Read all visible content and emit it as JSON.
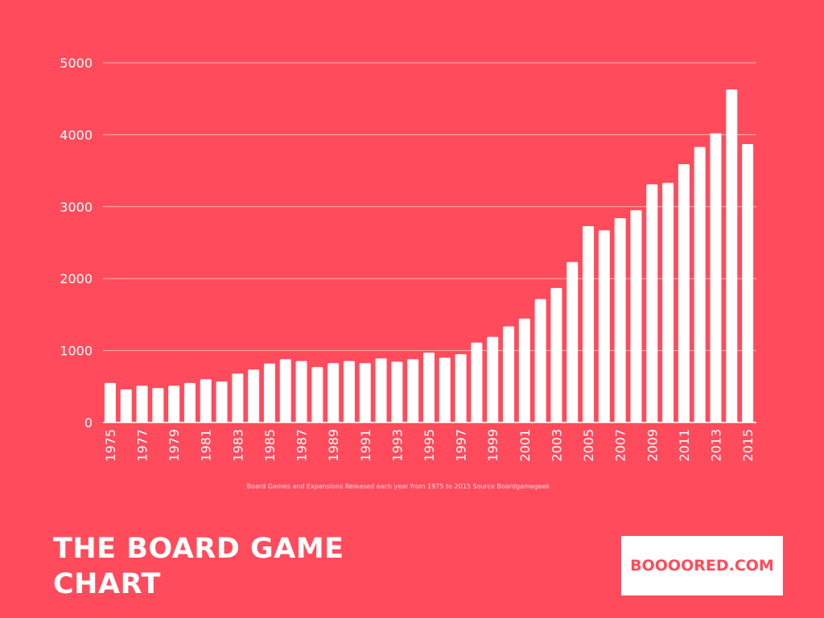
{
  "chart_data": {
    "type": "bar",
    "categories": [
      "1975",
      "1976",
      "1977",
      "1978",
      "1979",
      "1980",
      "1981",
      "1982",
      "1983",
      "1984",
      "1985",
      "1986",
      "1987",
      "1988",
      "1989",
      "1990",
      "1991",
      "1992",
      "1993",
      "1994",
      "1995",
      "1996",
      "1997",
      "1998",
      "1999",
      "2000",
      "2001",
      "2002",
      "2003",
      "2004",
      "2005",
      "2006",
      "2007",
      "2008",
      "2009",
      "2010",
      "2011",
      "2012",
      "2013",
      "2014",
      "2015"
    ],
    "tick_labels": [
      "1975",
      "1977",
      "1979",
      "1981",
      "1983",
      "1985",
      "1987",
      "1989",
      "1991",
      "1993",
      "1995",
      "1997",
      "1999",
      "2001",
      "2003",
      "2005",
      "2007",
      "2009",
      "2011",
      "2013",
      "2015"
    ],
    "values": [
      550,
      460,
      510,
      480,
      510,
      550,
      600,
      570,
      680,
      735,
      820,
      880,
      855,
      770,
      825,
      855,
      825,
      890,
      845,
      880,
      970,
      900,
      950,
      1110,
      1190,
      1335,
      1445,
      1715,
      1870,
      2230,
      2730,
      2670,
      2840,
      2950,
      3310,
      3330,
      3590,
      3830,
      4020,
      4630,
      3870
    ],
    "ylim": [
      0,
      5000
    ],
    "yticks": [
      0,
      1000,
      2000,
      3000,
      4000,
      5000
    ],
    "grid": true,
    "bar_color": "#ffffff",
    "background": "#FF4B5C",
    "xlabel": "",
    "ylabel": ""
  },
  "caption": "Board Games and Expansions Released each year from 1975 to 2015 Source Boardgamegeek",
  "title_line1": "THE BOARD GAME",
  "title_line2": "CHART",
  "brand": "BOOOORED.COM"
}
